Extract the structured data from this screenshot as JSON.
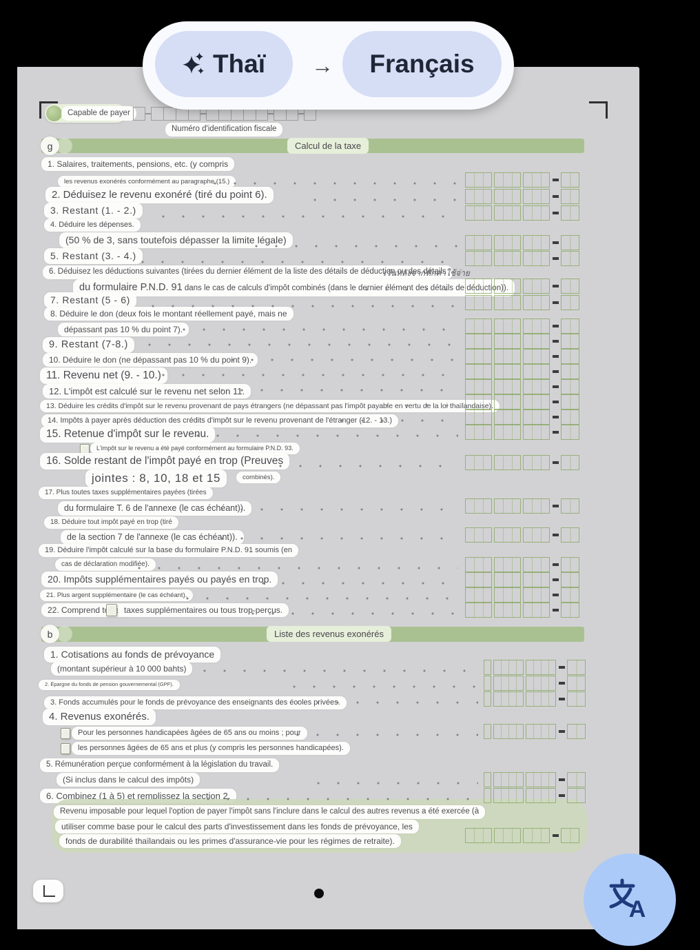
{
  "translate_bar": {
    "source_language": "Thaï",
    "target_language": "Français",
    "arrow": "→"
  },
  "icons": {
    "sparkle": "sparkle-icon",
    "arrow_right": "arrow-right-icon",
    "translate": "translate-icon",
    "corner_brackets": "document-corner-marks"
  },
  "colors": {
    "banner_green": "#a9c190",
    "banner_label_bg": "#e6efda",
    "grid_green": "#86a65f",
    "lang_pill_lavender": "#d6def6",
    "lang_text_navy": "#1e2637",
    "fab_blue": "#accaf8",
    "fab_glyph": "#1d3b7c",
    "paper_gray": "#d2d2d4"
  },
  "header": {
    "payer_chip": "Capable de payer",
    "tax_id_label": "Numéro d'identification fiscale"
  },
  "g": {
    "marker": "g",
    "title": "Calcul de la taxe",
    "l1a": "1. Salaires, traitements, pensions, etc. (y compris",
    "l1b": "les revenus exonérés conformément au paragraphe (15.)",
    "l2": "2. Déduisez le revenu exonéré (tiré du point 6).",
    "l3": "3. Restant (1. - 2.)",
    "l4a": "4. Déduire les dépenses.",
    "l4b": "(50 % de 3, sans toutefois dépasser la limite légale)",
    "l5": "5. Restant (3. - 4.)",
    "l6a": "6. Déduisez les déductions suivantes (tirées du dernier élément de la liste des détails de déduction ou des détails",
    "l6_thai": "เว้นหลังจากหักค่าใช้จ่าย",
    "l6b_big": "du formulaire P.N.D. 91",
    "l6b_rest": " dans le cas de calculs d'impôt combinés (dans le dernier élément des détails de déduction)).",
    "l7": "7. Restant (5 - 6)",
    "l8a": "8. Déduire le don (deux fois le montant réellement payé, mais ne",
    "l8b": "dépassant pas 10 % du point 7).",
    "l9": "9. Restant (7-8.)",
    "l10": "10. Déduire le don (ne dépassant pas 10 % du point 9).",
    "l11": "11. Revenu net (9. - 10.)",
    "l12": "12. L'impôt est calculé sur le revenu net selon 11.",
    "l13": "13. Déduire les crédits d'impôt sur le revenu provenant de pays étrangers (ne dépassant pas l'impôt payable en vertu de la loi thaïlandaise).",
    "l14": "14. Impôts à payer après déduction des crédits d'impôt sur le revenu provenant de l'étranger (12. - 13.)",
    "l15": "15. Retenue d'impôt sur le revenu.",
    "l15_check": "L'impôt sur le revenu a été payé conformément au formulaire P.N.D. 93.",
    "l16a": "16. Solde restant de l'impôt payé en trop (Preuves",
    "l16b": "jointes : 8, 10, 18 et 15",
    "l16c": "combinés).",
    "l17a": "17. Plus toutes taxes supplémentaires payées (tirées",
    "l17b": "du formulaire T. 6 de l'annexe (le cas échéant)).",
    "l18a": "18. Déduire tout impôt payé en trop (tiré",
    "l18b": "de la section 7 de l'annexe (le cas échéant)).",
    "l19a": "19. Déduire l'impôt calculé sur la base du formulaire P.N.D. 91 soumis (en",
    "l19b": "cas de déclaration modifiée).",
    "l20": "20. Impôts supplémentaires payés ou payés en trop.",
    "l21": "21. Plus argent supplémentaire (le cas échéant).",
    "l22a": "22. Comprend toutes",
    "l22b": "taxes supplémentaires ou tous trop-perçus."
  },
  "b": {
    "marker": "b",
    "title": "Liste des revenus exonérés",
    "l1a": "1. Cotisations au fonds de prévoyance",
    "l1b": "(montant supérieur à 10 000 bahts)",
    "l2": "2. Épargne du fonds de pension gouvernemental (GPF).",
    "l3": "3. Fonds accumulés pour le fonds de prévoyance des enseignants des écoles privées.",
    "l4": "4. Revenus exonérés.",
    "l4_cb1": "Pour les personnes handicapées âgées de 65 ans ou moins ; pour",
    "l4_cb2": "les personnes âgées de 65 ans et plus (y compris les personnes handicapées).",
    "l5a": "5. Rémunération perçue conformément à la législation du travail.",
    "l5b": "(Si inclus dans le calcul des impôts)",
    "l6": "6. Combinez (1 à 5) et remplissez la section 2."
  },
  "footnote": {
    "line1": "Revenu imposable pour lequel l'option de payer l'impôt sans l'inclure dans le calcul des autres revenus a été exercée (à",
    "line2": "utiliser comme base pour le calcul des parts d'investissement dans les fonds de prévoyance, les",
    "line3": "fonds de durabilité thaïlandais ou les primes d'assurance-vie pour les régimes de retraite)."
  }
}
